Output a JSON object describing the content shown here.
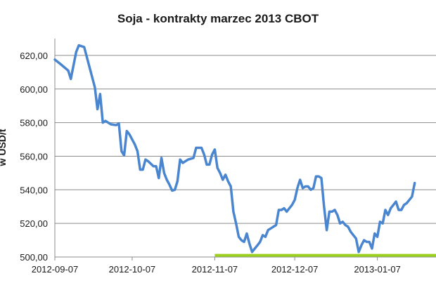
{
  "chart_data": {
    "type": "line",
    "title": "Soja - kontrakty marzec 2013 CBOT",
    "ylabel": "w USD/t",
    "xlabel": "",
    "ylim": [
      500,
      630
    ],
    "yticks": [
      "500,00",
      "520,00",
      "540,00",
      "560,00",
      "580,00",
      "600,00",
      "620,00"
    ],
    "ytick_values": [
      500,
      520,
      540,
      560,
      580,
      600,
      620
    ],
    "xticks": [
      "2012-09-07",
      "2012-10-07",
      "2012-11-07",
      "2012-12-07",
      "2013-01-07"
    ],
    "xtick_indices": [
      0,
      29,
      60,
      90,
      121
    ],
    "x_domain": [
      0,
      143
    ],
    "grid": true,
    "line_color": "#4a86d0",
    "support_color": "#9bd11e",
    "support_line": {
      "y": 501,
      "x_start": 60,
      "x_end": 143
    },
    "series": [
      {
        "values": [
          [
            0,
            617.5
          ],
          [
            2,
            615
          ],
          [
            5,
            611
          ],
          [
            6,
            606
          ],
          [
            8,
            622
          ],
          [
            9,
            626
          ],
          [
            11,
            625
          ],
          [
            13,
            613
          ],
          [
            15,
            601
          ],
          [
            16,
            588
          ],
          [
            17,
            597
          ],
          [
            18,
            580
          ],
          [
            19,
            581
          ],
          [
            21,
            579
          ],
          [
            23,
            578.5
          ],
          [
            24,
            579.5
          ],
          [
            25,
            563
          ],
          [
            26,
            560.5
          ],
          [
            27,
            575
          ],
          [
            28,
            573
          ],
          [
            30,
            567
          ],
          [
            31,
            563
          ],
          [
            32,
            552
          ],
          [
            33,
            552
          ],
          [
            34,
            558
          ],
          [
            35,
            557
          ],
          [
            37,
            554
          ],
          [
            38,
            554
          ],
          [
            39,
            547
          ],
          [
            40,
            559
          ],
          [
            41,
            550
          ],
          [
            42,
            546
          ],
          [
            43,
            543
          ],
          [
            44,
            539.5
          ],
          [
            45,
            540
          ],
          [
            46,
            545
          ],
          [
            47,
            558
          ],
          [
            48,
            556
          ],
          [
            50,
            558
          ],
          [
            52,
            559
          ],
          [
            53,
            565
          ],
          [
            55,
            565
          ],
          [
            56,
            561
          ],
          [
            57,
            555
          ],
          [
            58,
            555
          ],
          [
            59,
            561
          ],
          [
            60,
            564
          ],
          [
            61,
            553
          ],
          [
            62,
            550
          ],
          [
            63,
            546
          ],
          [
            64,
            549
          ],
          [
            65,
            545
          ],
          [
            66,
            542
          ],
          [
            67,
            527
          ],
          [
            68,
            520
          ],
          [
            69,
            512
          ],
          [
            70,
            510
          ],
          [
            71,
            509
          ],
          [
            72,
            514
          ],
          [
            73,
            508
          ],
          [
            74,
            503
          ],
          [
            75,
            505
          ],
          [
            76,
            507
          ],
          [
            77,
            509
          ],
          [
            78,
            513
          ],
          [
            79,
            512
          ],
          [
            80,
            516
          ],
          [
            81,
            517
          ],
          [
            82,
            518
          ],
          [
            83,
            519
          ],
          [
            84,
            528
          ],
          [
            85,
            528
          ],
          [
            86,
            529
          ],
          [
            87,
            527
          ],
          [
            88,
            529
          ],
          [
            89,
            531
          ],
          [
            90,
            534
          ],
          [
            91,
            541
          ],
          [
            92,
            546
          ],
          [
            93,
            541
          ],
          [
            94,
            542
          ],
          [
            95,
            542
          ],
          [
            96,
            540
          ],
          [
            97,
            541
          ],
          [
            98,
            548
          ],
          [
            99,
            548
          ],
          [
            100,
            547
          ],
          [
            101,
            530
          ],
          [
            102,
            516
          ],
          [
            103,
            527
          ],
          [
            104,
            527
          ],
          [
            105,
            528
          ],
          [
            106,
            525
          ],
          [
            107,
            520
          ],
          [
            108,
            521
          ],
          [
            109,
            519
          ],
          [
            110,
            518
          ],
          [
            111,
            515
          ],
          [
            112,
            513
          ],
          [
            113,
            511
          ],
          [
            114,
            503
          ],
          [
            115,
            507
          ],
          [
            116,
            510
          ],
          [
            117,
            509
          ],
          [
            118,
            509
          ],
          [
            119,
            505
          ],
          [
            120,
            514
          ],
          [
            121,
            512
          ],
          [
            122,
            521
          ],
          [
            123,
            520
          ],
          [
            124,
            528
          ],
          [
            125,
            525
          ],
          [
            126,
            529
          ],
          [
            127,
            531
          ],
          [
            128,
            533
          ],
          [
            129,
            528
          ],
          [
            130,
            528
          ],
          [
            131,
            531
          ],
          [
            132,
            532
          ],
          [
            133,
            534
          ],
          [
            134,
            536
          ],
          [
            135,
            544
          ]
        ]
      }
    ]
  }
}
